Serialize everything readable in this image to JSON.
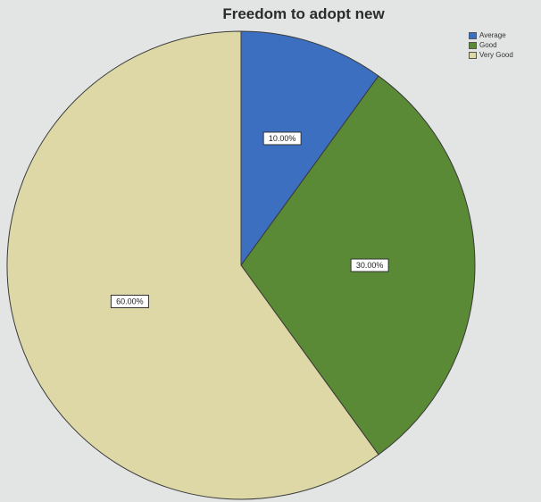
{
  "chart_data": {
    "type": "pie",
    "title": "Freedom to adopt new",
    "categories": [
      "Average",
      "Good",
      "Very Good"
    ],
    "values": [
      10,
      30,
      60
    ],
    "data_labels": [
      "10.00%",
      "30.00%",
      "60.00%"
    ],
    "colors": [
      "#3d6fc1",
      "#5b8a36",
      "#ddd8a6"
    ],
    "legend_position": "top-right"
  }
}
